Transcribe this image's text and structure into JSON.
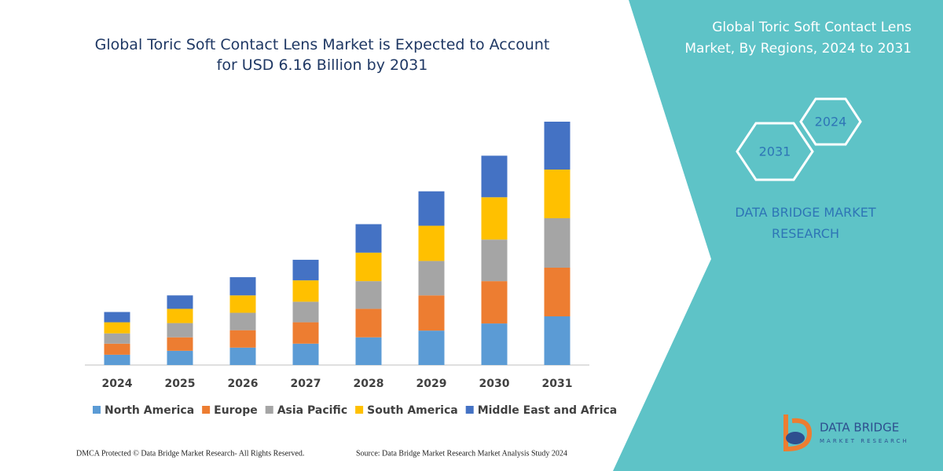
{
  "chart_data": {
    "type": "bar",
    "stacked": true,
    "title": "Global Toric Soft Contact Lens Market is Expected to Account for USD 6.16 Billion by 2031",
    "categories": [
      "2024",
      "2025",
      "2026",
      "2027",
      "2028",
      "2029",
      "2030",
      "2031"
    ],
    "series": [
      {
        "name": "North America",
        "color": "#5b9bd5",
        "values": [
          0.26,
          0.36,
          0.44,
          0.54,
          0.7,
          0.87,
          1.05,
          1.23
        ]
      },
      {
        "name": "Europe",
        "color": "#ed7d31",
        "values": [
          0.28,
          0.34,
          0.44,
          0.54,
          0.72,
          0.89,
          1.07,
          1.23
        ]
      },
      {
        "name": "Asia Pacific",
        "color": "#a5a5a5",
        "values": [
          0.26,
          0.36,
          0.44,
          0.52,
          0.7,
          0.87,
          1.05,
          1.25
        ]
      },
      {
        "name": "South America",
        "color": "#ffc000",
        "values": [
          0.28,
          0.36,
          0.44,
          0.54,
          0.72,
          0.89,
          1.07,
          1.23
        ]
      },
      {
        "name": "Middle East and Africa",
        "color": "#4472c4",
        "values": [
          0.26,
          0.34,
          0.46,
          0.52,
          0.72,
          0.87,
          1.05,
          1.21
        ]
      }
    ]
  },
  "panel": {
    "title": "Global Toric Soft Contact Lens Market, By Regions, 2024 to 2031",
    "hexagons": [
      "2024",
      "2031"
    ],
    "brand": "DATA BRIDGE MARKET RESEARCH"
  },
  "logo": {
    "name": "DATA BRIDGE",
    "tagline": "MARKET RESEARCH"
  },
  "footer": {
    "left": "DMCA Protected © Data Bridge Market Research- All Rights Reserved.",
    "right": "Source: Data Bridge Market Research Market Analysis Study 2024"
  }
}
